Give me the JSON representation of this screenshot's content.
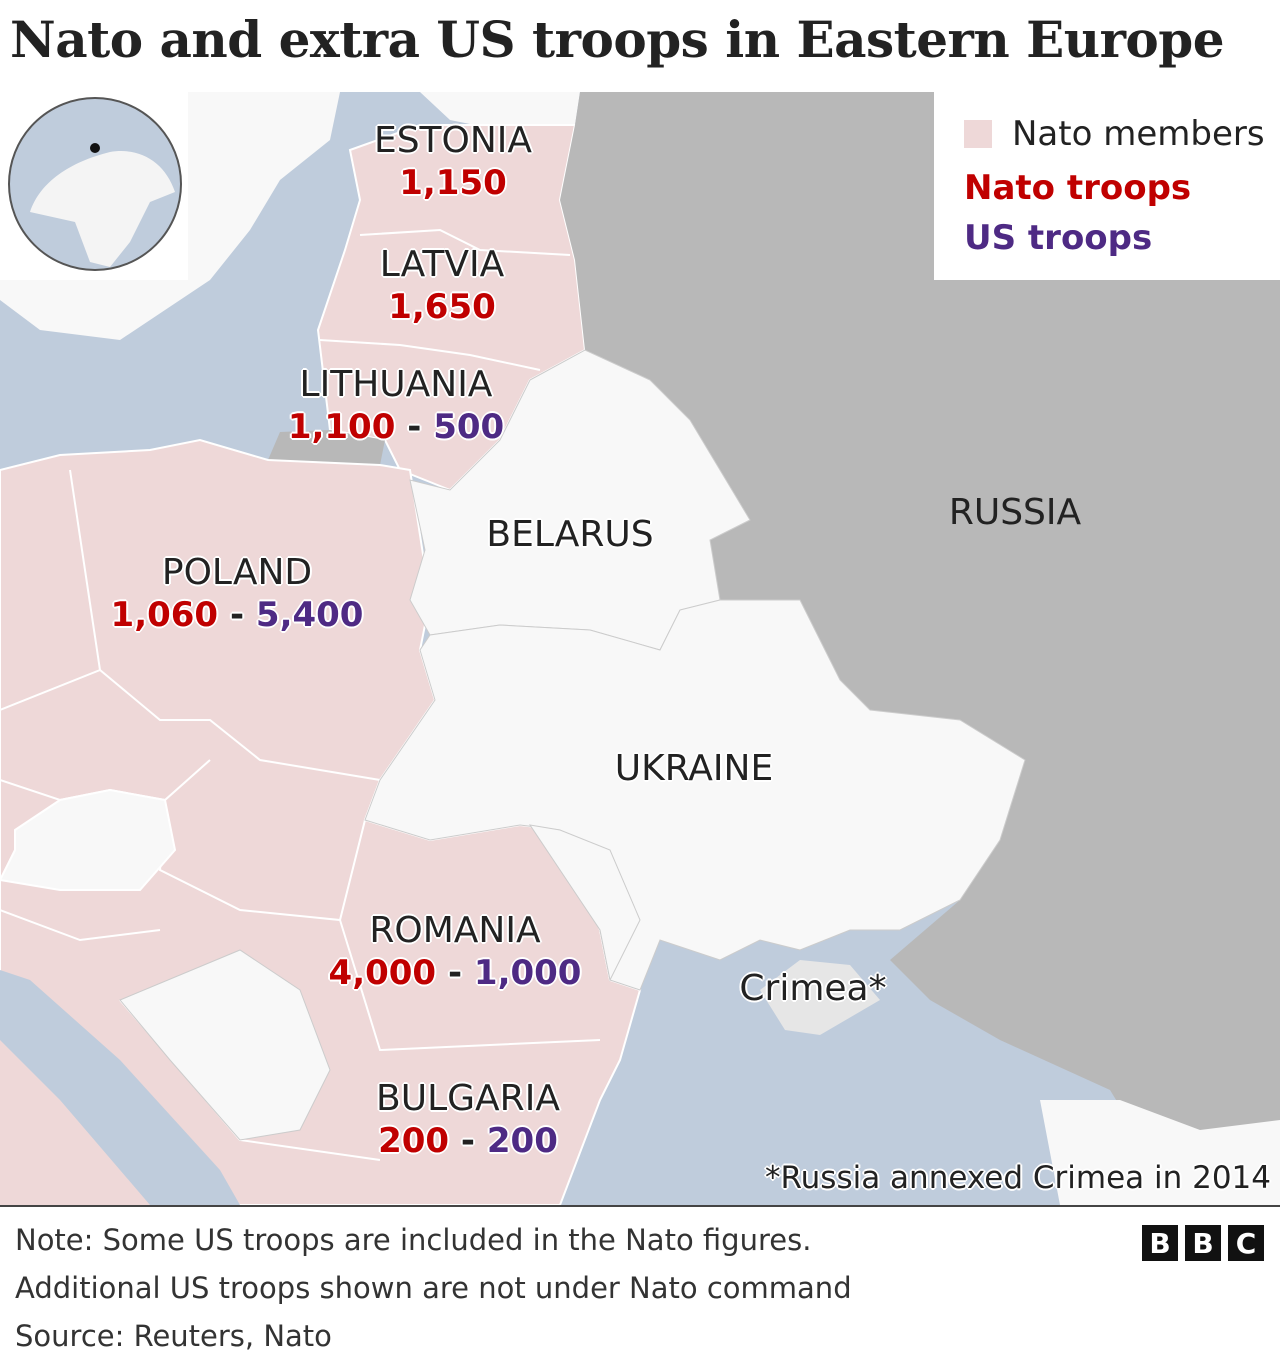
{
  "title": "Nato and extra US troops in Eastern Europe",
  "colors": {
    "nato_member": "#eed8d8",
    "non_member": "#f8f8f8",
    "russia": "#b8b8b8",
    "sea": "#bfccdc",
    "nato_troops": "#c00000",
    "us_troops": "#4e2a84"
  },
  "legend": {
    "members": "Nato members",
    "nato_troops": "Nato troops",
    "us_troops": "US troops"
  },
  "countries": {
    "estonia": {
      "name": "ESTONIA",
      "nato": "1,150"
    },
    "latvia": {
      "name": "LATVIA",
      "nato": "1,650"
    },
    "lithuania": {
      "name": "LITHUANIA",
      "nato": "1,100",
      "us": "500"
    },
    "poland": {
      "name": "POLAND",
      "nato": "1,060",
      "us": "5,400"
    },
    "romania": {
      "name": "ROMANIA",
      "nato": "4,000",
      "us": "1,000"
    },
    "bulgaria": {
      "name": "BULGARIA",
      "nato": "200",
      "us": "200"
    },
    "belarus": {
      "name": "BELARUS"
    },
    "ukraine": {
      "name": "UKRAINE"
    },
    "russia": {
      "name": "RUSSIA"
    },
    "crimea": {
      "name": "Crimea*"
    }
  },
  "dash": "-",
  "annotation": "*Russia annexed Crimea in 2014",
  "footer": {
    "note1": "Note: Some US troops are included in the Nato figures.",
    "note2": "Additional US troops shown are not under Nato command",
    "source": "Source: Reuters, Nato",
    "logo": [
      "B",
      "B",
      "C"
    ]
  }
}
